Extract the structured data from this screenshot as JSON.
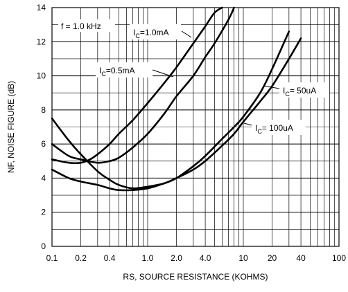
{
  "chart_data": {
    "type": "line",
    "title": "",
    "xlabel": "RS, SOURCE RESISTANCE (KOHMS)",
    "ylabel": "NF, NOISE FIGURE (dB)",
    "x_scale": "log",
    "xlim": [
      0.1,
      100
    ],
    "ylim": [
      0,
      14
    ],
    "x_ticks": [
      "0.1",
      "0.2",
      "0.4",
      "1.0",
      "2.0",
      "4.0",
      "10",
      "20",
      "40",
      "100"
    ],
    "x_tick_values": [
      0.1,
      0.2,
      0.4,
      1.0,
      2.0,
      4.0,
      10,
      20,
      40,
      100
    ],
    "y_ticks": [
      "0",
      "2",
      "4",
      "6",
      "8",
      "10",
      "12",
      "14"
    ],
    "y_tick_values": [
      0,
      2,
      4,
      6,
      8,
      10,
      12,
      14
    ],
    "grid": true,
    "condition_label": "f = 1.0 kHz",
    "series": [
      {
        "name": "IC=1.0mA",
        "x": [
          0.1,
          0.15,
          0.2,
          0.25,
          0.3,
          0.4,
          0.5,
          0.7,
          1.0,
          1.5,
          2.0,
          3.0,
          4.0,
          5.0,
          6.0
        ],
        "y": [
          5.1,
          4.9,
          4.9,
          5.1,
          5.4,
          6.0,
          6.6,
          7.4,
          8.4,
          9.6,
          10.5,
          11.9,
          12.9,
          13.7,
          14.0
        ]
      },
      {
        "name": "IC=0.5mA",
        "x": [
          0.1,
          0.15,
          0.2,
          0.3,
          0.4,
          0.5,
          0.7,
          1.0,
          1.5,
          2.0,
          3.0,
          4.0,
          5.0,
          7.0,
          8.0
        ],
        "y": [
          6.0,
          5.3,
          5.1,
          4.9,
          5.0,
          5.2,
          5.8,
          6.6,
          7.8,
          8.8,
          10.0,
          11.1,
          11.9,
          13.3,
          14.0
        ]
      },
      {
        "name": "IC= 50uA",
        "x": [
          0.1,
          0.15,
          0.2,
          0.3,
          0.4,
          0.5,
          0.7,
          1.0,
          1.5,
          2.0,
          3.0,
          4.0,
          6.0,
          8.0,
          10.0,
          15.0,
          20.0,
          30.0,
          40.0
        ],
        "y": [
          7.5,
          6.2,
          5.4,
          4.4,
          3.9,
          3.6,
          3.4,
          3.5,
          3.7,
          4.0,
          4.5,
          5.0,
          5.9,
          6.6,
          7.3,
          8.5,
          9.4,
          11.0,
          12.2
        ]
      },
      {
        "name": "IC= 100uA",
        "x": [
          0.1,
          0.15,
          0.2,
          0.3,
          0.4,
          0.5,
          0.7,
          1.0,
          1.5,
          2.0,
          3.0,
          4.0,
          6.0,
          8.0,
          10.0,
          15.0,
          20.0,
          30.0
        ],
        "y": [
          4.5,
          4.0,
          3.8,
          3.6,
          3.4,
          3.3,
          3.3,
          3.4,
          3.7,
          4.0,
          4.7,
          5.3,
          6.3,
          7.0,
          7.6,
          9.0,
          10.4,
          12.6
        ]
      }
    ]
  }
}
